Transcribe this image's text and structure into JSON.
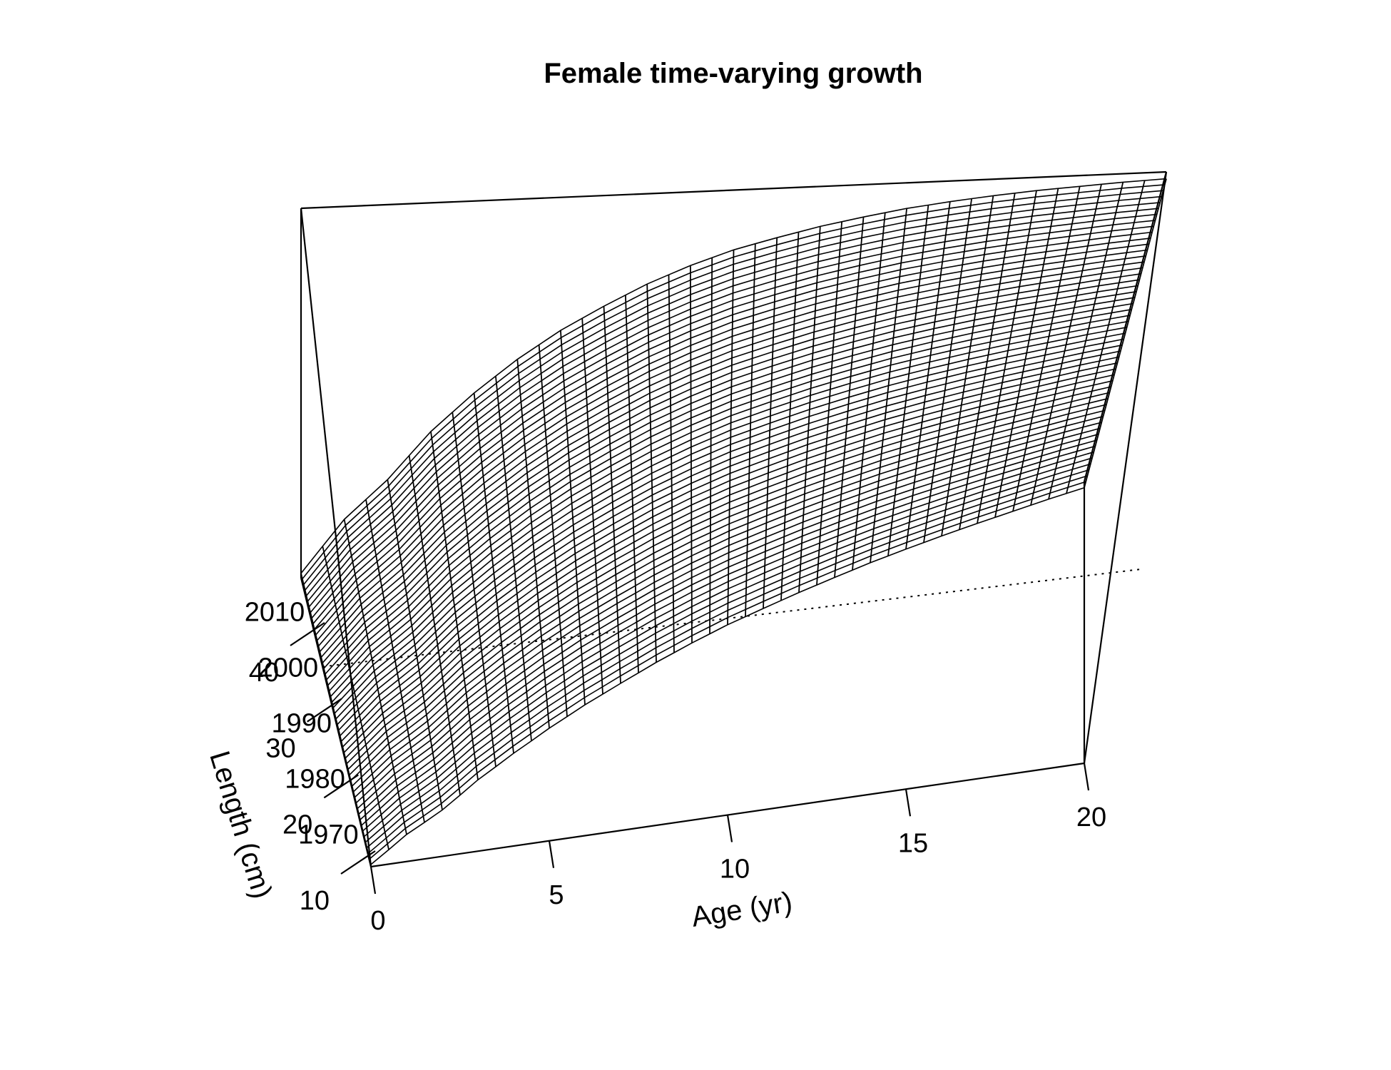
{
  "chart_data": {
    "type": "surface",
    "title": "Female time-varying growth",
    "xlabel": "Age (yr)",
    "ylabel": "",
    "zlabel": "Length (cm)",
    "age_ticks": [
      "0",
      "5",
      "10",
      "15",
      "20"
    ],
    "year_ticks": [
      "1970",
      "1980",
      "1990",
      "2000",
      "2010"
    ],
    "length_ticks": [
      "10",
      "20",
      "30",
      "40"
    ],
    "age_range": [
      0,
      20
    ],
    "year_range": [
      1964,
      2016
    ],
    "length_range": [
      9,
      50
    ],
    "growth_model": {
      "description_of_surface": "length at age; nearly constant across years",
      "length_at_age": [
        [
          0,
          9.5
        ],
        [
          1,
          15.0
        ],
        [
          2,
          19.0
        ],
        [
          3,
          24.0
        ],
        [
          4,
          28.0
        ],
        [
          5,
          31.5
        ],
        [
          6,
          34.5
        ],
        [
          7,
          37.0
        ],
        [
          8,
          39.3
        ],
        [
          9,
          41.2
        ],
        [
          10,
          42.8
        ],
        [
          11,
          44.0
        ],
        [
          12,
          45.1
        ],
        [
          13,
          46.0
        ],
        [
          14,
          46.8
        ],
        [
          15,
          47.4
        ],
        [
          16,
          47.9
        ],
        [
          17,
          48.3
        ],
        [
          18,
          48.6
        ],
        [
          19,
          48.9
        ],
        [
          20,
          49.1
        ]
      ]
    },
    "reference_line_year": 2000,
    "grid": false
  }
}
